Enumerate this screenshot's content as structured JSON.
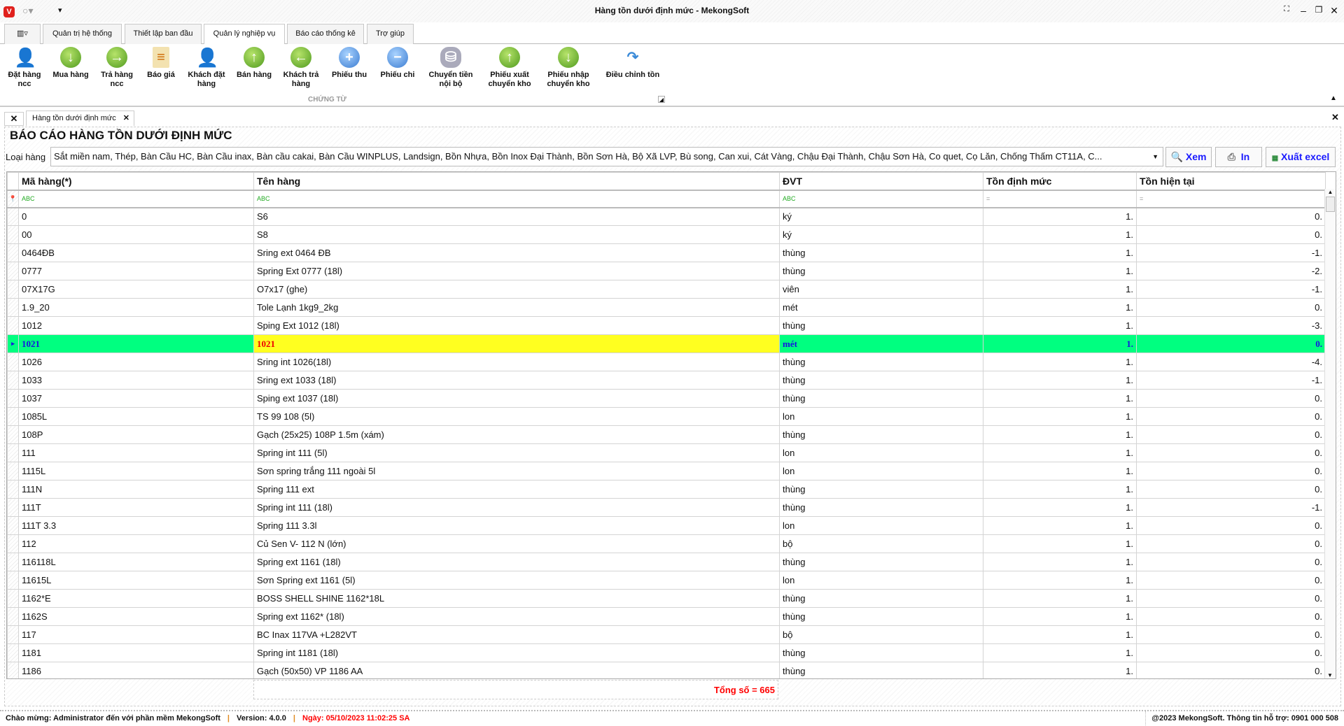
{
  "window": {
    "title": "Hàng tồn dưới định mức - MekongSoft"
  },
  "menu_tabs": [
    "Quản trị hệ thống",
    "Thiết lập ban đầu",
    "Quản lý nghiệp vụ",
    "Báo cáo thống kê",
    "Trợ giúp"
  ],
  "active_menu_tab": "Quản lý nghiệp vụ",
  "ribbon": {
    "group_label": "CHỨNG TỪ",
    "buttons": [
      {
        "label": "Đặt hàng ncc",
        "icon": "person-bag-icon"
      },
      {
        "label": "Mua hàng",
        "icon": "cart-down-icon"
      },
      {
        "label": "Trả hàng ncc",
        "icon": "arrow-right-icon"
      },
      {
        "label": "Báo giá",
        "icon": "document-icon"
      },
      {
        "label": "Khách đặt hàng",
        "icon": "person-bag-icon"
      },
      {
        "label": "Bán hàng",
        "icon": "cart-up-icon"
      },
      {
        "label": "Khách trả hàng",
        "icon": "arrow-left-icon"
      },
      {
        "label": "Phiếu thu",
        "icon": "plus-icon"
      },
      {
        "label": "Phiếu chi",
        "icon": "minus-icon"
      },
      {
        "label": "Chuyển tiền nội bộ",
        "icon": "coins-icon"
      },
      {
        "label": "Phiếu xuất chuyển kho",
        "icon": "arrow-up-icon"
      },
      {
        "label": "Phiếu nhập chuyển kho",
        "icon": "arrow-down-icon"
      },
      {
        "label": "Điều chỉnh tồn",
        "icon": "chart-arrow-icon"
      }
    ]
  },
  "doc_tab": {
    "label": "Hàng tồn dưới định mức"
  },
  "report": {
    "title": "BÁO CÁO HÀNG TỒN DƯỚI ĐỊNH MỨC",
    "filter_label": "Loại hàng",
    "filter_value": "Sắt miền nam, Thép, Bàn Cầu HC, Bàn Cầu inax, Bàn cầu cakai, Bàn Cầu WINPLUS, Landsign, Bồn Nhựa, Bồn Inox Đại Thành, Bồn Sơn Hà, Bộ Xã LVP, Bù song, Can xui, Cát Vàng, Chậu Đại Thành, Chậu Sơn Hà, Co quet, Cọ Lăn, Chống Thấm CT11A, C...",
    "view_label": "Xem",
    "print_label": "In",
    "excel_label": "Xuất excel"
  },
  "grid": {
    "columns": [
      "Mã hàng(*)",
      "Tên hàng",
      "ĐVT",
      "Tồn định mức",
      "Tồn hiện tại"
    ],
    "filter_hints": [
      "ABC",
      "ABC",
      "ABC",
      "=",
      "="
    ],
    "selected_index": 7,
    "rows": [
      [
        "0",
        "S6",
        "ký",
        "1.",
        "0."
      ],
      [
        "00",
        "S8",
        "ký",
        "1.",
        "0."
      ],
      [
        "0464ĐB",
        "Sring ext 0464 ĐB",
        "thùng",
        "1.",
        "-1."
      ],
      [
        "0777",
        "Spring Ext 0777 (18l)",
        "thùng",
        "1.",
        "-2."
      ],
      [
        "07X17G",
        "O7x17 (ghe)",
        "viên",
        "1.",
        "-1."
      ],
      [
        "1.9_20",
        "Tole Lạnh 1kg9_2kg",
        "mét",
        "1.",
        "0."
      ],
      [
        "1012",
        "Sping Ext 1012 (18l)",
        "thùng",
        "1.",
        "-3."
      ],
      [
        "1021",
        "1021",
        "mét",
        "1.",
        "0."
      ],
      [
        "1026",
        "Sring int 1026(18l)",
        "thùng",
        "1.",
        "-4."
      ],
      [
        "1033",
        "Sring ext 1033 (18l)",
        "thùng",
        "1.",
        "-1."
      ],
      [
        "1037",
        "Sping ext 1037 (18l)",
        "thùng",
        "1.",
        "0."
      ],
      [
        "1085L",
        "TS 99 108 (5l)",
        "lon",
        "1.",
        "0."
      ],
      [
        "108P",
        "Gạch (25x25) 108P 1.5m (xám)",
        "thùng",
        "1.",
        "0."
      ],
      [
        "111",
        "Spring int 111 (5l)",
        "lon",
        "1.",
        "0."
      ],
      [
        "1115L",
        "Sơn spring trắng 111 ngoài 5l",
        "lon",
        "1.",
        "0."
      ],
      [
        "111N",
        "Spring 111 ext",
        "thùng",
        "1.",
        "0."
      ],
      [
        "111T",
        "Spring int 111 (18l)",
        "thùng",
        "1.",
        "-1."
      ],
      [
        "111T 3.3",
        "Spring 111 3.3l",
        "lon",
        "1.",
        "0."
      ],
      [
        "112",
        "Củ Sen V- 112 N (lớn)",
        "bộ",
        "1.",
        "0."
      ],
      [
        "116118L",
        "Spring ext 1161 (18l)",
        "thùng",
        "1.",
        "0."
      ],
      [
        "11615L",
        "Sơn Spring ext 1161 (5l)",
        "lon",
        "1.",
        "0."
      ],
      [
        "1162*E",
        "BOSS SHELL SHINE 1162*18L",
        "thùng",
        "1.",
        "0."
      ],
      [
        "1162S",
        "Spring ext 1162* (18l)",
        "thùng",
        "1.",
        "0."
      ],
      [
        "117",
        "BC Inax 117VA +L282VT",
        "bộ",
        "1.",
        "0."
      ],
      [
        "1181",
        "Spring int 1181 (18l)",
        "thùng",
        "1.",
        "0."
      ],
      [
        "1186",
        "Gạch (50x50) VP 1186 AA",
        "thùng",
        "1.",
        "0."
      ]
    ],
    "total_label": "Tổng số = 665"
  },
  "status": {
    "welcome": "Chào mừng: Administrator đến với phần mềm MekongSoft",
    "version": "Version: 4.0.0",
    "date": "Ngày: 05/10/2023 11:02:25 SA",
    "copyright": "@2023 MekongSoft. Thông tin hỗ trợ: 0901 000 508"
  },
  "colors": {
    "selected_row": "#00ff80",
    "selected_cell": "#ffff20",
    "total_text": "#ff0000",
    "date_text": "#ff0000"
  }
}
